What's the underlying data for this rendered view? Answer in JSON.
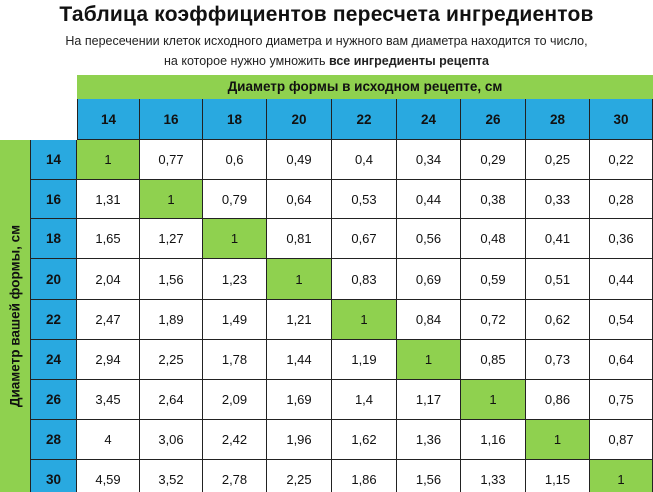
{
  "title": "Таблица коэффициентов пересчета ингредиентов",
  "subtitle": {
    "line1": "На пересечении клеток исходного диаметра и нужного вам диаметра находится то число,",
    "line2_prefix": "на которое нужно умножить ",
    "line2_bold": "все ингредиенты рецепта"
  },
  "top_label": "Диаметр формы в исходном рецепте, см",
  "side_label": "Диаметр вашей формы, см",
  "colors": {
    "header_blue": "#29a9e0",
    "diagonal_green": "#8fd14f"
  },
  "columns": [
    "14",
    "16",
    "18",
    "20",
    "22",
    "24",
    "26",
    "28",
    "30"
  ],
  "rows": [
    {
      "label": "14",
      "values": [
        "1",
        "0,77",
        "0,6",
        "0,49",
        "0,4",
        "0,34",
        "0,29",
        "0,25",
        "0,22"
      ]
    },
    {
      "label": "16",
      "values": [
        "1,31",
        "1",
        "0,79",
        "0,64",
        "0,53",
        "0,44",
        "0,38",
        "0,33",
        "0,28"
      ]
    },
    {
      "label": "18",
      "values": [
        "1,65",
        "1,27",
        "1",
        "0,81",
        "0,67",
        "0,56",
        "0,48",
        "0,41",
        "0,36"
      ]
    },
    {
      "label": "20",
      "values": [
        "2,04",
        "1,56",
        "1,23",
        "1",
        "0,83",
        "0,69",
        "0,59",
        "0,51",
        "0,44"
      ]
    },
    {
      "label": "22",
      "values": [
        "2,47",
        "1,89",
        "1,49",
        "1,21",
        "1",
        "0,84",
        "0,72",
        "0,62",
        "0,54"
      ]
    },
    {
      "label": "24",
      "values": [
        "2,94",
        "2,25",
        "1,78",
        "1,44",
        "1,19",
        "1",
        "0,85",
        "0,73",
        "0,64"
      ]
    },
    {
      "label": "26",
      "values": [
        "3,45",
        "2,64",
        "2,09",
        "1,69",
        "1,4",
        "1,17",
        "1",
        "0,86",
        "0,75"
      ]
    },
    {
      "label": "28",
      "values": [
        "4",
        "3,06",
        "2,42",
        "1,96",
        "1,62",
        "1,36",
        "1,16",
        "1",
        "0,87"
      ]
    },
    {
      "label": "30",
      "values": [
        "4,59",
        "3,52",
        "2,78",
        "2,25",
        "1,86",
        "1,56",
        "1,33",
        "1,15",
        "1"
      ]
    }
  ]
}
